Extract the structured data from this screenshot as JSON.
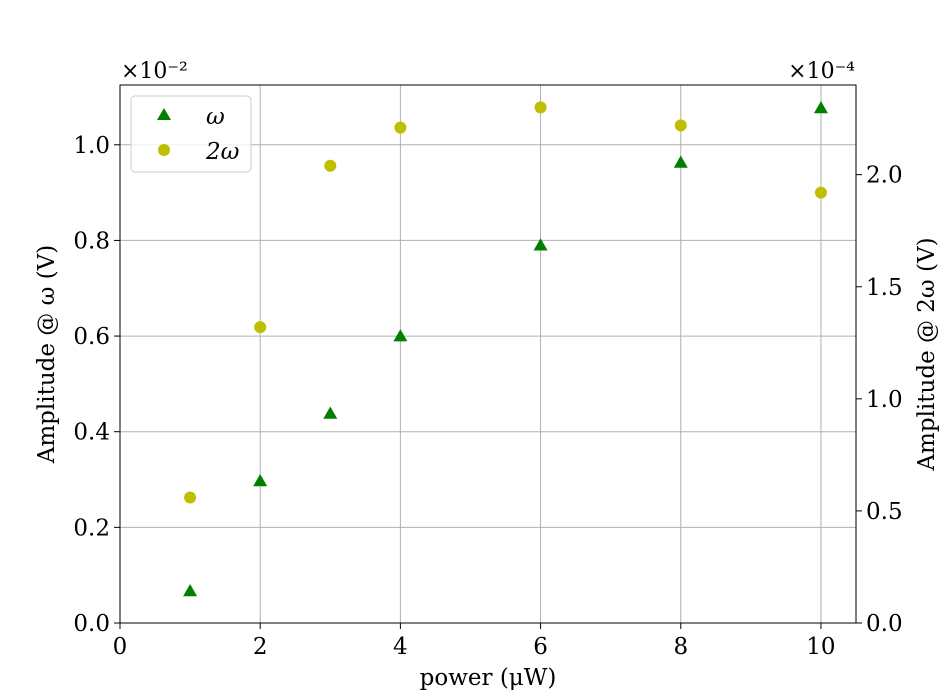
{
  "chart_data": {
    "type": "scatter",
    "xlabel": "power (μW)",
    "ylabel_left": "Amplitude @ ω (V)",
    "ylabel_right": "Amplitude @ 2ω (V)",
    "xlim": [
      0,
      10.5
    ],
    "ylim_left": [
      0,
      1.125
    ],
    "ylim_right": [
      0,
      2.4
    ],
    "x_ticks": [
      "0",
      "2",
      "4",
      "6",
      "8",
      "10"
    ],
    "y_ticks_left": [
      "0.0",
      "0.2",
      "0.4",
      "0.6",
      "0.8",
      "1.0"
    ],
    "y_ticks_right": [
      "0.0",
      "0.5",
      "1.0",
      "1.5",
      "2.0"
    ],
    "offset_left": "×10⁻²",
    "offset_right": "×10⁻⁴",
    "grid": true,
    "legend_position": "top-left",
    "series": [
      {
        "name": "ω",
        "axis": "left",
        "marker": "triangle",
        "color": "#008000",
        "x": [
          1,
          2,
          3,
          4,
          6,
          8,
          10
        ],
        "y": [
          0.067,
          0.297,
          0.438,
          0.6,
          0.79,
          0.963,
          1.077
        ]
      },
      {
        "name": "2ω",
        "axis": "right",
        "marker": "circle",
        "color": "#bfbf00",
        "x": [
          1,
          2,
          3,
          4,
          6,
          8,
          10
        ],
        "y": [
          0.56,
          1.32,
          2.04,
          2.21,
          2.3,
          2.22,
          1.92
        ]
      }
    ]
  }
}
